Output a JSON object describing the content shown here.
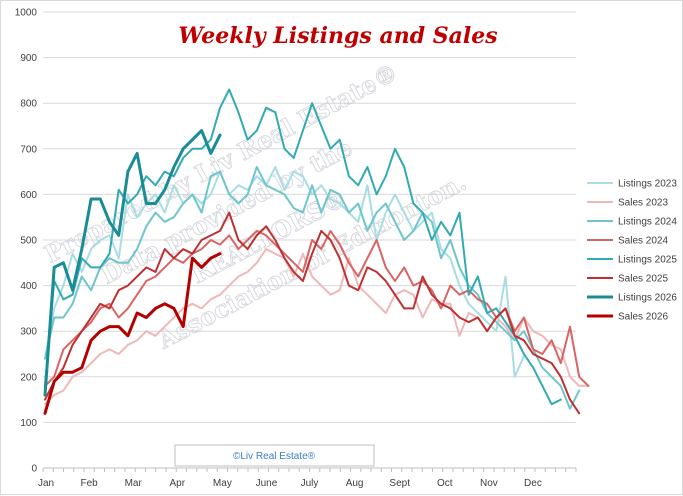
{
  "chart_data": {
    "type": "line",
    "title": "Weekly Listings and Sales",
    "xlabel": "",
    "ylabel": "",
    "ylim": [
      0,
      1000
    ],
    "yticks": [
      0,
      100,
      200,
      300,
      400,
      500,
      600,
      700,
      800,
      900,
      1000
    ],
    "x_tick_labels": [
      "Jan",
      "Feb",
      "Mar",
      "Apr",
      "May",
      "June",
      "July",
      "Aug",
      "Sept",
      "Oct",
      "Nov",
      "Dec"
    ],
    "grid": true,
    "legend_position": "right",
    "series": [
      {
        "name": "Listings 2023",
        "color": "#a8dde3",
        "width": 2,
        "values": [
          240,
          350,
          400,
          470,
          430,
          480,
          500,
          510,
          460,
          600,
          550,
          580,
          600,
          560,
          620,
          580,
          600,
          580,
          600,
          650,
          600,
          620,
          610,
          640,
          620,
          660,
          610,
          650,
          640,
          600,
          620,
          590,
          580,
          560,
          540,
          620,
          500,
          560,
          600,
          560,
          520,
          540,
          560,
          480,
          460,
          400,
          360,
          340,
          320,
          300,
          420,
          200,
          245
        ]
      },
      {
        "name": "Sales 2023",
        "color": "#f0b8b8",
        "width": 2,
        "values": [
          140,
          160,
          170,
          200,
          210,
          230,
          250,
          260,
          250,
          270,
          280,
          300,
          290,
          310,
          330,
          350,
          360,
          350,
          370,
          380,
          400,
          420,
          430,
          450,
          480,
          470,
          460,
          420,
          470,
          420,
          400,
          380,
          390,
          460,
          400,
          380,
          360,
          340,
          380,
          390,
          380,
          330,
          370,
          360,
          360,
          290,
          340,
          330,
          300,
          330,
          310,
          280,
          330,
          300,
          290,
          270,
          260,
          200,
          180,
          180
        ]
      },
      {
        "name": "Listings 2024",
        "color": "#6ec6cc",
        "width": 2,
        "values": [
          240,
          330,
          330,
          360,
          420,
          390,
          440,
          460,
          450,
          450,
          480,
          530,
          560,
          540,
          550,
          580,
          600,
          560,
          640,
          650,
          600,
          580,
          600,
          660,
          620,
          610,
          600,
          570,
          560,
          620,
          560,
          610,
          600,
          560,
          580,
          520,
          560,
          580,
          540,
          500,
          520,
          560,
          540,
          460,
          500,
          440,
          400,
          380,
          340,
          320,
          300,
          280,
          300,
          260,
          220,
          200,
          180,
          130,
          170
        ]
      },
      {
        "name": "Sales 2024",
        "color": "#d96464",
        "width": 2,
        "values": [
          180,
          200,
          260,
          280,
          300,
          320,
          350,
          360,
          330,
          350,
          380,
          410,
          420,
          440,
          460,
          450,
          470,
          480,
          500,
          490,
          510,
          480,
          500,
          520,
          510,
          490,
          470,
          450,
          430,
          500,
          480,
          520,
          490,
          450,
          420,
          460,
          500,
          440,
          410,
          440,
          400,
          410,
          390,
          350,
          400,
          380,
          390,
          370,
          360,
          330,
          350,
          300,
          330,
          260,
          250,
          280,
          230,
          310,
          200,
          180
        ]
      },
      {
        "name": "Listings 2025",
        "color": "#33aab2",
        "width": 2,
        "values": [
          180,
          410,
          370,
          380,
          460,
          440,
          440,
          470,
          610,
          580,
          600,
          640,
          620,
          650,
          640,
          680,
          700,
          700,
          720,
          790,
          830,
          780,
          720,
          740,
          790,
          780,
          700,
          680,
          740,
          800,
          750,
          700,
          720,
          640,
          620,
          660,
          600,
          640,
          700,
          660,
          580,
          560,
          500,
          540,
          510,
          560,
          380,
          420,
          340,
          350,
          320,
          290,
          250,
          220,
          180,
          140,
          150
        ]
      },
      {
        "name": "Sales 2025",
        "color": "#c03030",
        "width": 2,
        "values": [
          150,
          190,
          220,
          270,
          300,
          330,
          360,
          350,
          390,
          400,
          420,
          440,
          430,
          480,
          460,
          480,
          470,
          500,
          510,
          520,
          560,
          500,
          480,
          510,
          530,
          500,
          460,
          430,
          410,
          470,
          520,
          500,
          460,
          400,
          390,
          440,
          430,
          410,
          380,
          350,
          350,
          420,
          380,
          360,
          350,
          330,
          320,
          330,
          300,
          330,
          350,
          290,
          280,
          250,
          240,
          230,
          200,
          150,
          120
        ]
      },
      {
        "name": "Listings 2026",
        "color": "#1a8c96",
        "width": 3,
        "values": [
          160,
          440,
          450,
          390,
          480,
          590,
          590,
          540,
          510,
          650,
          690,
          580,
          580,
          610,
          660,
          700,
          720,
          740,
          690,
          730
        ]
      },
      {
        "name": "Sales 2026",
        "color": "#b40000",
        "width": 3,
        "values": [
          120,
          190,
          210,
          210,
          220,
          280,
          300,
          310,
          310,
          290,
          340,
          330,
          350,
          360,
          350,
          310,
          460,
          440,
          460,
          470
        ]
      }
    ]
  },
  "watermark": {
    "line1": "Prepared by Liv Real Estate®",
    "line2": "Data provided by the",
    "line3": "REALTORS®",
    "line4": "Association of Edmonton."
  },
  "copyright": "©Liv Real Estate®"
}
